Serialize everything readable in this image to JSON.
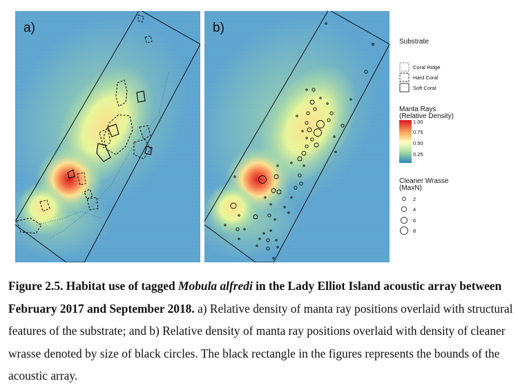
{
  "panels": [
    {
      "label": "a)"
    },
    {
      "label": "b)"
    }
  ],
  "legend": {
    "substrate": {
      "title": "Substrate",
      "items": [
        {
          "label": "Coral Ridge",
          "line": "dotted"
        },
        {
          "label": "Hard Coral",
          "line": "dashed"
        },
        {
          "label": "Soft Coral",
          "line": "solid"
        }
      ]
    },
    "density": {
      "title_line1": "Manta Rays",
      "title_line2": "(Relative Density)",
      "ticks": [
        "1.00",
        "0.75",
        "0.50",
        "0.25"
      ],
      "colors": [
        "#d7191c",
        "#fdae61",
        "#ffffbf",
        "#abdda4",
        "#2b83ba"
      ]
    },
    "wrasse": {
      "title_line1": "Cleaner Wrasse",
      "title_line2": "(MaxN)",
      "items": [
        "2",
        "4",
        "6",
        "8"
      ]
    }
  },
  "caption": {
    "figure_label": "Figure 2.5. Habitat use of tagged ",
    "species": "Mobula alfredi",
    "title_rest": " in the Lady Elliot Island acoustic array between February 2017 and September 2018.",
    "body": " a) Relative density of manta ray positions overlaid with structural features of the substrate; and b) Relative density of manta ray positions overlaid with density of cleaner wrasse denoted by size of black circles. The black rectangle in the figures represents the bounds of the acoustic array."
  }
}
